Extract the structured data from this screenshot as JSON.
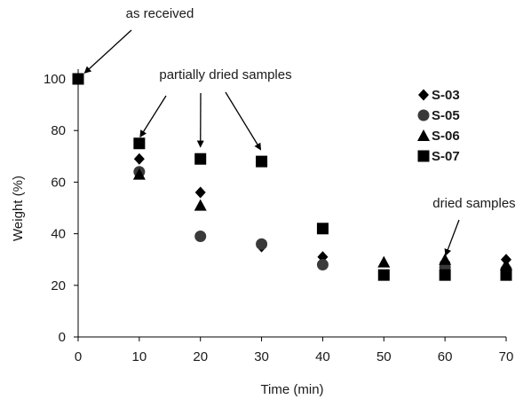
{
  "chart_data": {
    "type": "scatter",
    "title": "",
    "xlabel": "Time (min)",
    "ylabel": "Weight (%)",
    "xlim": [
      0,
      70
    ],
    "ylim": [
      0,
      100
    ],
    "xticks": [
      0,
      10,
      20,
      30,
      40,
      50,
      60,
      70
    ],
    "yticks": [
      0,
      20,
      40,
      60,
      80,
      100
    ],
    "xtick_labels": [
      "0",
      "10",
      "20",
      "30",
      "40",
      "50",
      "60",
      "70"
    ],
    "ytick_labels": [
      "0",
      "20",
      "40",
      "60",
      "80",
      "100"
    ],
    "grid": false,
    "legend_position": "top-right",
    "series": [
      {
        "name": "S-03",
        "marker": "diamond",
        "color": "#000000",
        "x": [
          10,
          20,
          30,
          40,
          60,
          70
        ],
        "y": [
          69,
          56,
          35,
          31,
          29,
          30
        ]
      },
      {
        "name": "S-05",
        "marker": "circle",
        "color": "#3a3a3a",
        "x": [
          10,
          20,
          30,
          40,
          60,
          70
        ],
        "y": [
          64,
          39,
          36,
          28,
          27,
          26
        ]
      },
      {
        "name": "S-06",
        "marker": "triangle",
        "color": "#000000",
        "x": [
          10,
          20,
          50,
          60,
          70
        ],
        "y": [
          63,
          51,
          29,
          30,
          28
        ]
      },
      {
        "name": "S-07",
        "marker": "square",
        "color": "#000000",
        "x": [
          0,
          10,
          20,
          30,
          40,
          50,
          60,
          70
        ],
        "y": [
          100,
          75,
          69,
          68,
          42,
          24,
          24,
          24
        ]
      }
    ],
    "annotations": [
      {
        "id": "as-received",
        "text": "as received",
        "points_to": [
          [
            0,
            100
          ]
        ]
      },
      {
        "id": "partially-dried",
        "text": "partially dried samples",
        "points_to": [
          [
            10,
            77
          ],
          [
            20,
            73
          ],
          [
            30,
            72
          ]
        ]
      },
      {
        "id": "dried-samples",
        "text": "dried samples",
        "points_to": [
          [
            60,
            31
          ]
        ]
      }
    ]
  }
}
